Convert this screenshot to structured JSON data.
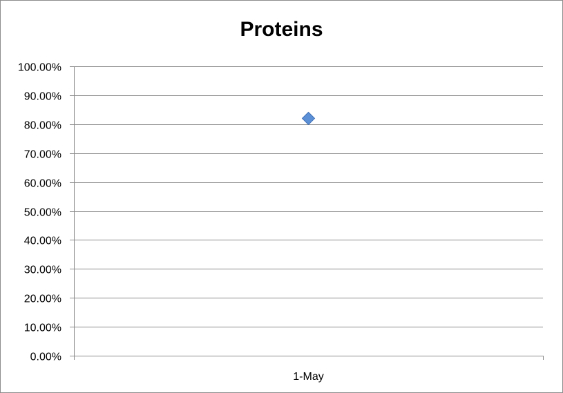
{
  "chart_data": {
    "type": "scatter",
    "title": "Proteins",
    "xlabel": "",
    "ylabel": "",
    "categories": [
      "1-May"
    ],
    "series": [
      {
        "values": [
          0.82
        ],
        "color": "#5b8fd6",
        "marker": "diamond"
      }
    ],
    "ylim": [
      0,
      1
    ],
    "yticks": [
      {
        "value": 0.0,
        "label": "0.00%"
      },
      {
        "value": 0.1,
        "label": "10.00%"
      },
      {
        "value": 0.2,
        "label": "20.00%"
      },
      {
        "value": 0.3,
        "label": "30.00%"
      },
      {
        "value": 0.4,
        "label": "40.00%"
      },
      {
        "value": 0.5,
        "label": "50.00%"
      },
      {
        "value": 0.6,
        "label": "60.00%"
      },
      {
        "value": 0.7,
        "label": "70.00%"
      },
      {
        "value": 0.8,
        "label": "80.00%"
      },
      {
        "value": 0.9,
        "label": "90.00%"
      },
      {
        "value": 1.0,
        "label": "100.00%"
      }
    ],
    "grid": true,
    "legend": "none",
    "colors": {
      "grid": "#8a8a8a",
      "axis": "#8a8a8a",
      "marker_stroke": "#3f6fb5"
    }
  }
}
